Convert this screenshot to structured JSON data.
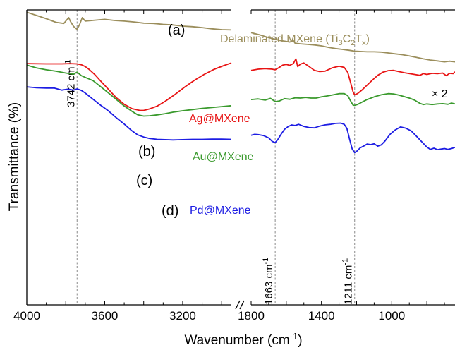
{
  "chart_data": {
    "type": "line",
    "xlabel": "Wavenumber (cm-1)",
    "ylabel": "Transmittance (%)",
    "x_segments": [
      {
        "xlim": [
          4000,
          2950
        ],
        "ticks": [
          4000,
          3600,
          3200
        ]
      },
      {
        "xlim": [
          1800,
          640
        ],
        "ticks": [
          1800,
          1400,
          1000
        ]
      }
    ],
    "axis_break_label": "//",
    "y_ticks": "none",
    "grid": false,
    "legend": "none",
    "reference_lines": [
      {
        "x": 3742,
        "label": "3742 cm-1"
      },
      {
        "x": 1663,
        "label": "1663 cm-1"
      },
      {
        "x": 1211,
        "label": "1211 cm-1"
      }
    ],
    "series": [
      {
        "id": "a",
        "panel_label": "(a)",
        "name": "Delaminated MXene (Ti3C2Tx)",
        "scale_note": "× 2",
        "color": "#9b8e5c",
        "points": [
          [
            4000,
            0.8
          ],
          [
            3950,
            1.9
          ],
          [
            3900,
            3.0
          ],
          [
            3850,
            4.2
          ],
          [
            3810,
            4.6
          ],
          [
            3785,
            2.6
          ],
          [
            3775,
            4.0
          ],
          [
            3760,
            5.6
          ],
          [
            3742,
            6.6
          ],
          [
            3728,
            4.8
          ],
          [
            3715,
            2.6
          ],
          [
            3700,
            3.8
          ],
          [
            3650,
            3.5
          ],
          [
            3600,
            3.2
          ],
          [
            3550,
            3.6
          ],
          [
            3500,
            3.8
          ],
          [
            3450,
            4.1
          ],
          [
            3400,
            4.5
          ],
          [
            3350,
            4.6
          ],
          [
            3300,
            4.9
          ],
          [
            3250,
            5.1
          ],
          [
            3200,
            5.5
          ],
          [
            3150,
            5.7
          ],
          [
            3100,
            6.0
          ],
          [
            3050,
            6.4
          ],
          [
            3000,
            6.7
          ],
          [
            2950,
            6.8
          ],
          [
            1800,
            7.7
          ],
          [
            1750,
            8.5
          ],
          [
            1700,
            9.4
          ],
          [
            1663,
            10.0
          ],
          [
            1620,
            10.5
          ],
          [
            1580,
            10.9
          ],
          [
            1560,
            10.4
          ],
          [
            1550,
            11.3
          ],
          [
            1520,
            11.5
          ],
          [
            1480,
            11.7
          ],
          [
            1440,
            11.9
          ],
          [
            1400,
            12.2
          ],
          [
            1360,
            12.7
          ],
          [
            1320,
            13.1
          ],
          [
            1280,
            13.4
          ],
          [
            1240,
            13.7
          ],
          [
            1211,
            14.0
          ],
          [
            1180,
            14.1
          ],
          [
            1140,
            14.2
          ],
          [
            1100,
            14.2
          ],
          [
            1060,
            14.3
          ],
          [
            1020,
            14.6
          ],
          [
            980,
            14.9
          ],
          [
            940,
            15.2
          ],
          [
            900,
            15.6
          ],
          [
            860,
            16.1
          ],
          [
            820,
            16.6
          ],
          [
            780,
            17.0
          ],
          [
            740,
            17.3
          ],
          [
            700,
            17.6
          ],
          [
            670,
            17.4
          ],
          [
            640,
            17.6
          ]
        ]
      },
      {
        "id": "b",
        "panel_label": "(b)",
        "name": "Ag@MXene",
        "color": "#e81414",
        "points": [
          [
            4000,
            18.2
          ],
          [
            3900,
            18.3
          ],
          [
            3820,
            18.3
          ],
          [
            3780,
            18.2
          ],
          [
            3742,
            18.3
          ],
          [
            3720,
            18.6
          ],
          [
            3700,
            19.2
          ],
          [
            3680,
            20.2
          ],
          [
            3650,
            22.0
          ],
          [
            3620,
            24.2
          ],
          [
            3580,
            27.0
          ],
          [
            3540,
            29.8
          ],
          [
            3500,
            32.0
          ],
          [
            3460,
            33.5
          ],
          [
            3420,
            34.1
          ],
          [
            3400,
            34.1
          ],
          [
            3370,
            33.6
          ],
          [
            3330,
            32.6
          ],
          [
            3290,
            31.0
          ],
          [
            3240,
            28.7
          ],
          [
            3190,
            26.2
          ],
          [
            3140,
            23.9
          ],
          [
            3090,
            21.9
          ],
          [
            3040,
            20.2
          ],
          [
            2990,
            18.9
          ],
          [
            2950,
            18.0
          ],
          [
            1800,
            20.5
          ],
          [
            1760,
            20.1
          ],
          [
            1720,
            19.9
          ],
          [
            1680,
            20.1
          ],
          [
            1663,
            20.3
          ],
          [
            1640,
            19.5
          ],
          [
            1620,
            18.7
          ],
          [
            1600,
            18.5
          ],
          [
            1580,
            18.8
          ],
          [
            1560,
            18.2
          ],
          [
            1545,
            16.6
          ],
          [
            1535,
            19.2
          ],
          [
            1520,
            18.4
          ],
          [
            1500,
            18.0
          ],
          [
            1470,
            19.2
          ],
          [
            1440,
            20.5
          ],
          [
            1410,
            20.9
          ],
          [
            1380,
            20.8
          ],
          [
            1340,
            19.7
          ],
          [
            1300,
            19.1
          ],
          [
            1270,
            19.5
          ],
          [
            1250,
            21.2
          ],
          [
            1235,
            24.5
          ],
          [
            1220,
            27.8
          ],
          [
            1211,
            28.8
          ],
          [
            1195,
            28.4
          ],
          [
            1170,
            27.2
          ],
          [
            1140,
            25.5
          ],
          [
            1110,
            23.8
          ],
          [
            1080,
            22.2
          ],
          [
            1050,
            21.1
          ],
          [
            1020,
            20.6
          ],
          [
            990,
            20.5
          ],
          [
            960,
            20.9
          ],
          [
            930,
            21.3
          ],
          [
            900,
            21.6
          ],
          [
            870,
            21.9
          ],
          [
            840,
            22.2
          ],
          [
            820,
            21.6
          ],
          [
            800,
            21.9
          ],
          [
            770,
            21.5
          ],
          [
            740,
            21.6
          ],
          [
            710,
            21.4
          ],
          [
            690,
            22.3
          ],
          [
            670,
            21.5
          ],
          [
            650,
            21.6
          ],
          [
            640,
            21.0
          ]
        ]
      },
      {
        "id": "c",
        "panel_label": "(c)",
        "name": "Au@MXene",
        "color": "#3a9a2d",
        "points": [
          [
            4000,
            18.7
          ],
          [
            3950,
            19.7
          ],
          [
            3900,
            20.3
          ],
          [
            3850,
            20.8
          ],
          [
            3800,
            21.4
          ],
          [
            3760,
            21.8
          ],
          [
            3742,
            21.1
          ],
          [
            3720,
            22.3
          ],
          [
            3700,
            22.9
          ],
          [
            3660,
            24.0
          ],
          [
            3620,
            26.1
          ],
          [
            3580,
            28.2
          ],
          [
            3540,
            30.4
          ],
          [
            3500,
            32.6
          ],
          [
            3460,
            34.4
          ],
          [
            3430,
            35.6
          ],
          [
            3400,
            36.0
          ],
          [
            3370,
            35.9
          ],
          [
            3330,
            35.6
          ],
          [
            3290,
            35.2
          ],
          [
            3250,
            34.7
          ],
          [
            3200,
            34.2
          ],
          [
            3150,
            33.8
          ],
          [
            3100,
            33.4
          ],
          [
            3050,
            33.1
          ],
          [
            3000,
            32.8
          ],
          [
            2950,
            32.5
          ],
          [
            1800,
            30.4
          ],
          [
            1760,
            30.2
          ],
          [
            1720,
            30.6
          ],
          [
            1690,
            30.0
          ],
          [
            1663,
            31.1
          ],
          [
            1640,
            30.9
          ],
          [
            1610,
            30.1
          ],
          [
            1580,
            30.3
          ],
          [
            1550,
            29.8
          ],
          [
            1520,
            29.9
          ],
          [
            1490,
            29.7
          ],
          [
            1460,
            29.9
          ],
          [
            1430,
            29.9
          ],
          [
            1400,
            29.5
          ],
          [
            1370,
            29.2
          ],
          [
            1340,
            28.9
          ],
          [
            1300,
            28.4
          ],
          [
            1270,
            28.4
          ],
          [
            1250,
            29.1
          ],
          [
            1235,
            30.8
          ],
          [
            1220,
            32.3
          ],
          [
            1211,
            32.4
          ],
          [
            1195,
            32.1
          ],
          [
            1170,
            31.3
          ],
          [
            1140,
            30.4
          ],
          [
            1100,
            29.5
          ],
          [
            1060,
            28.8
          ],
          [
            1020,
            28.4
          ],
          [
            990,
            28.5
          ],
          [
            960,
            28.9
          ],
          [
            930,
            29.4
          ],
          [
            900,
            29.9
          ],
          [
            870,
            30.6
          ],
          [
            840,
            31.7
          ],
          [
            820,
            32.1
          ],
          [
            800,
            31.9
          ],
          [
            770,
            32.1
          ],
          [
            740,
            31.9
          ],
          [
            710,
            31.8
          ],
          [
            680,
            32.0
          ],
          [
            660,
            31.6
          ],
          [
            640,
            31.9
          ]
        ]
      },
      {
        "id": "d",
        "panel_label": "(d)",
        "name": "Pd@MXene",
        "color": "#1d1de3",
        "points": [
          [
            4000,
            26.1
          ],
          [
            3950,
            26.4
          ],
          [
            3900,
            26.5
          ],
          [
            3860,
            26.5
          ],
          [
            3820,
            27.2
          ],
          [
            3790,
            26.9
          ],
          [
            3760,
            27.2
          ],
          [
            3742,
            26.8
          ],
          [
            3720,
            27.3
          ],
          [
            3700,
            28.2
          ],
          [
            3660,
            30.3
          ],
          [
            3620,
            32.4
          ],
          [
            3580,
            34.3
          ],
          [
            3540,
            36.6
          ],
          [
            3500,
            38.7
          ],
          [
            3460,
            41.0
          ],
          [
            3430,
            42.4
          ],
          [
            3400,
            43.1
          ],
          [
            3370,
            43.6
          ],
          [
            3330,
            43.9
          ],
          [
            3290,
            44.0
          ],
          [
            3250,
            44.1
          ],
          [
            3200,
            44.0
          ],
          [
            3150,
            43.9
          ],
          [
            3100,
            43.9
          ],
          [
            3050,
            43.8
          ],
          [
            3000,
            43.8
          ],
          [
            2950,
            43.9
          ],
          [
            1800,
            42.5
          ],
          [
            1780,
            42.2
          ],
          [
            1760,
            42.3
          ],
          [
            1730,
            42.6
          ],
          [
            1700,
            43.4
          ],
          [
            1680,
            44.6
          ],
          [
            1663,
            45.0
          ],
          [
            1650,
            44.1
          ],
          [
            1630,
            42.2
          ],
          [
            1610,
            40.5
          ],
          [
            1590,
            39.6
          ],
          [
            1570,
            39.0
          ],
          [
            1550,
            39.2
          ],
          [
            1530,
            38.8
          ],
          [
            1500,
            39.5
          ],
          [
            1470,
            39.9
          ],
          [
            1440,
            40.0
          ],
          [
            1410,
            39.4
          ],
          [
            1380,
            39.0
          ],
          [
            1350,
            38.8
          ],
          [
            1320,
            38.5
          ],
          [
            1290,
            38.4
          ],
          [
            1270,
            38.8
          ],
          [
            1255,
            40.2
          ],
          [
            1240,
            43.8
          ],
          [
            1225,
            47.2
          ],
          [
            1211,
            48.4
          ],
          [
            1200,
            48.0
          ],
          [
            1180,
            46.8
          ],
          [
            1160,
            46.2
          ],
          [
            1140,
            45.5
          ],
          [
            1120,
            45.7
          ],
          [
            1100,
            45.4
          ],
          [
            1080,
            46.2
          ],
          [
            1060,
            45.8
          ],
          [
            1040,
            44.6
          ],
          [
            1010,
            42.2
          ],
          [
            980,
            40.7
          ],
          [
            950,
            39.7
          ],
          [
            920,
            40.1
          ],
          [
            890,
            41.0
          ],
          [
            860,
            42.8
          ],
          [
            830,
            44.7
          ],
          [
            800,
            46.5
          ],
          [
            780,
            47.3
          ],
          [
            760,
            46.9
          ],
          [
            740,
            47.4
          ],
          [
            720,
            47.2
          ],
          [
            700,
            47.0
          ],
          [
            680,
            47.3
          ],
          [
            660,
            47.0
          ],
          [
            640,
            46.6
          ]
        ]
      }
    ]
  }
}
